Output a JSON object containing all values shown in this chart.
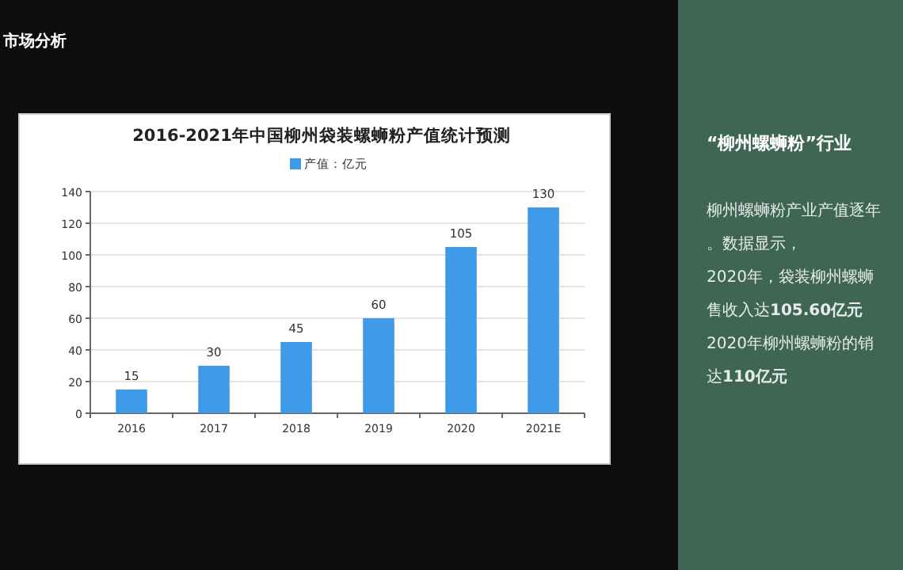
{
  "chart_data": {
    "type": "bar",
    "title": "2016-2021年中国柳州袋装螺蛳粉产值统计预测",
    "categories": [
      "2016",
      "2017",
      "2018",
      "2019",
      "2020",
      "2021E"
    ],
    "series": [
      {
        "name": "产值：亿元",
        "color": "#3f9ae8",
        "values": [
          15,
          30,
          45,
          60,
          105,
          130
        ]
      }
    ],
    "ylim": [
      0,
      140
    ],
    "yticks": [
      0,
      20,
      40,
      60,
      80,
      100,
      120,
      140
    ],
    "grid": "y",
    "legend": "top",
    "data_labels": true,
    "annotations": [
      "市场分析",
      "“柳州螺蛳粉”行业",
      "柳州螺蛳粉产业产值逐年",
      "。数据显示，",
      "2020年，袋装柳州螺蛳",
      "售收入达**105.60亿元**",
      "2020年柳州螺蛳粉的销",
      "达**110亿元**"
    ]
  }
}
